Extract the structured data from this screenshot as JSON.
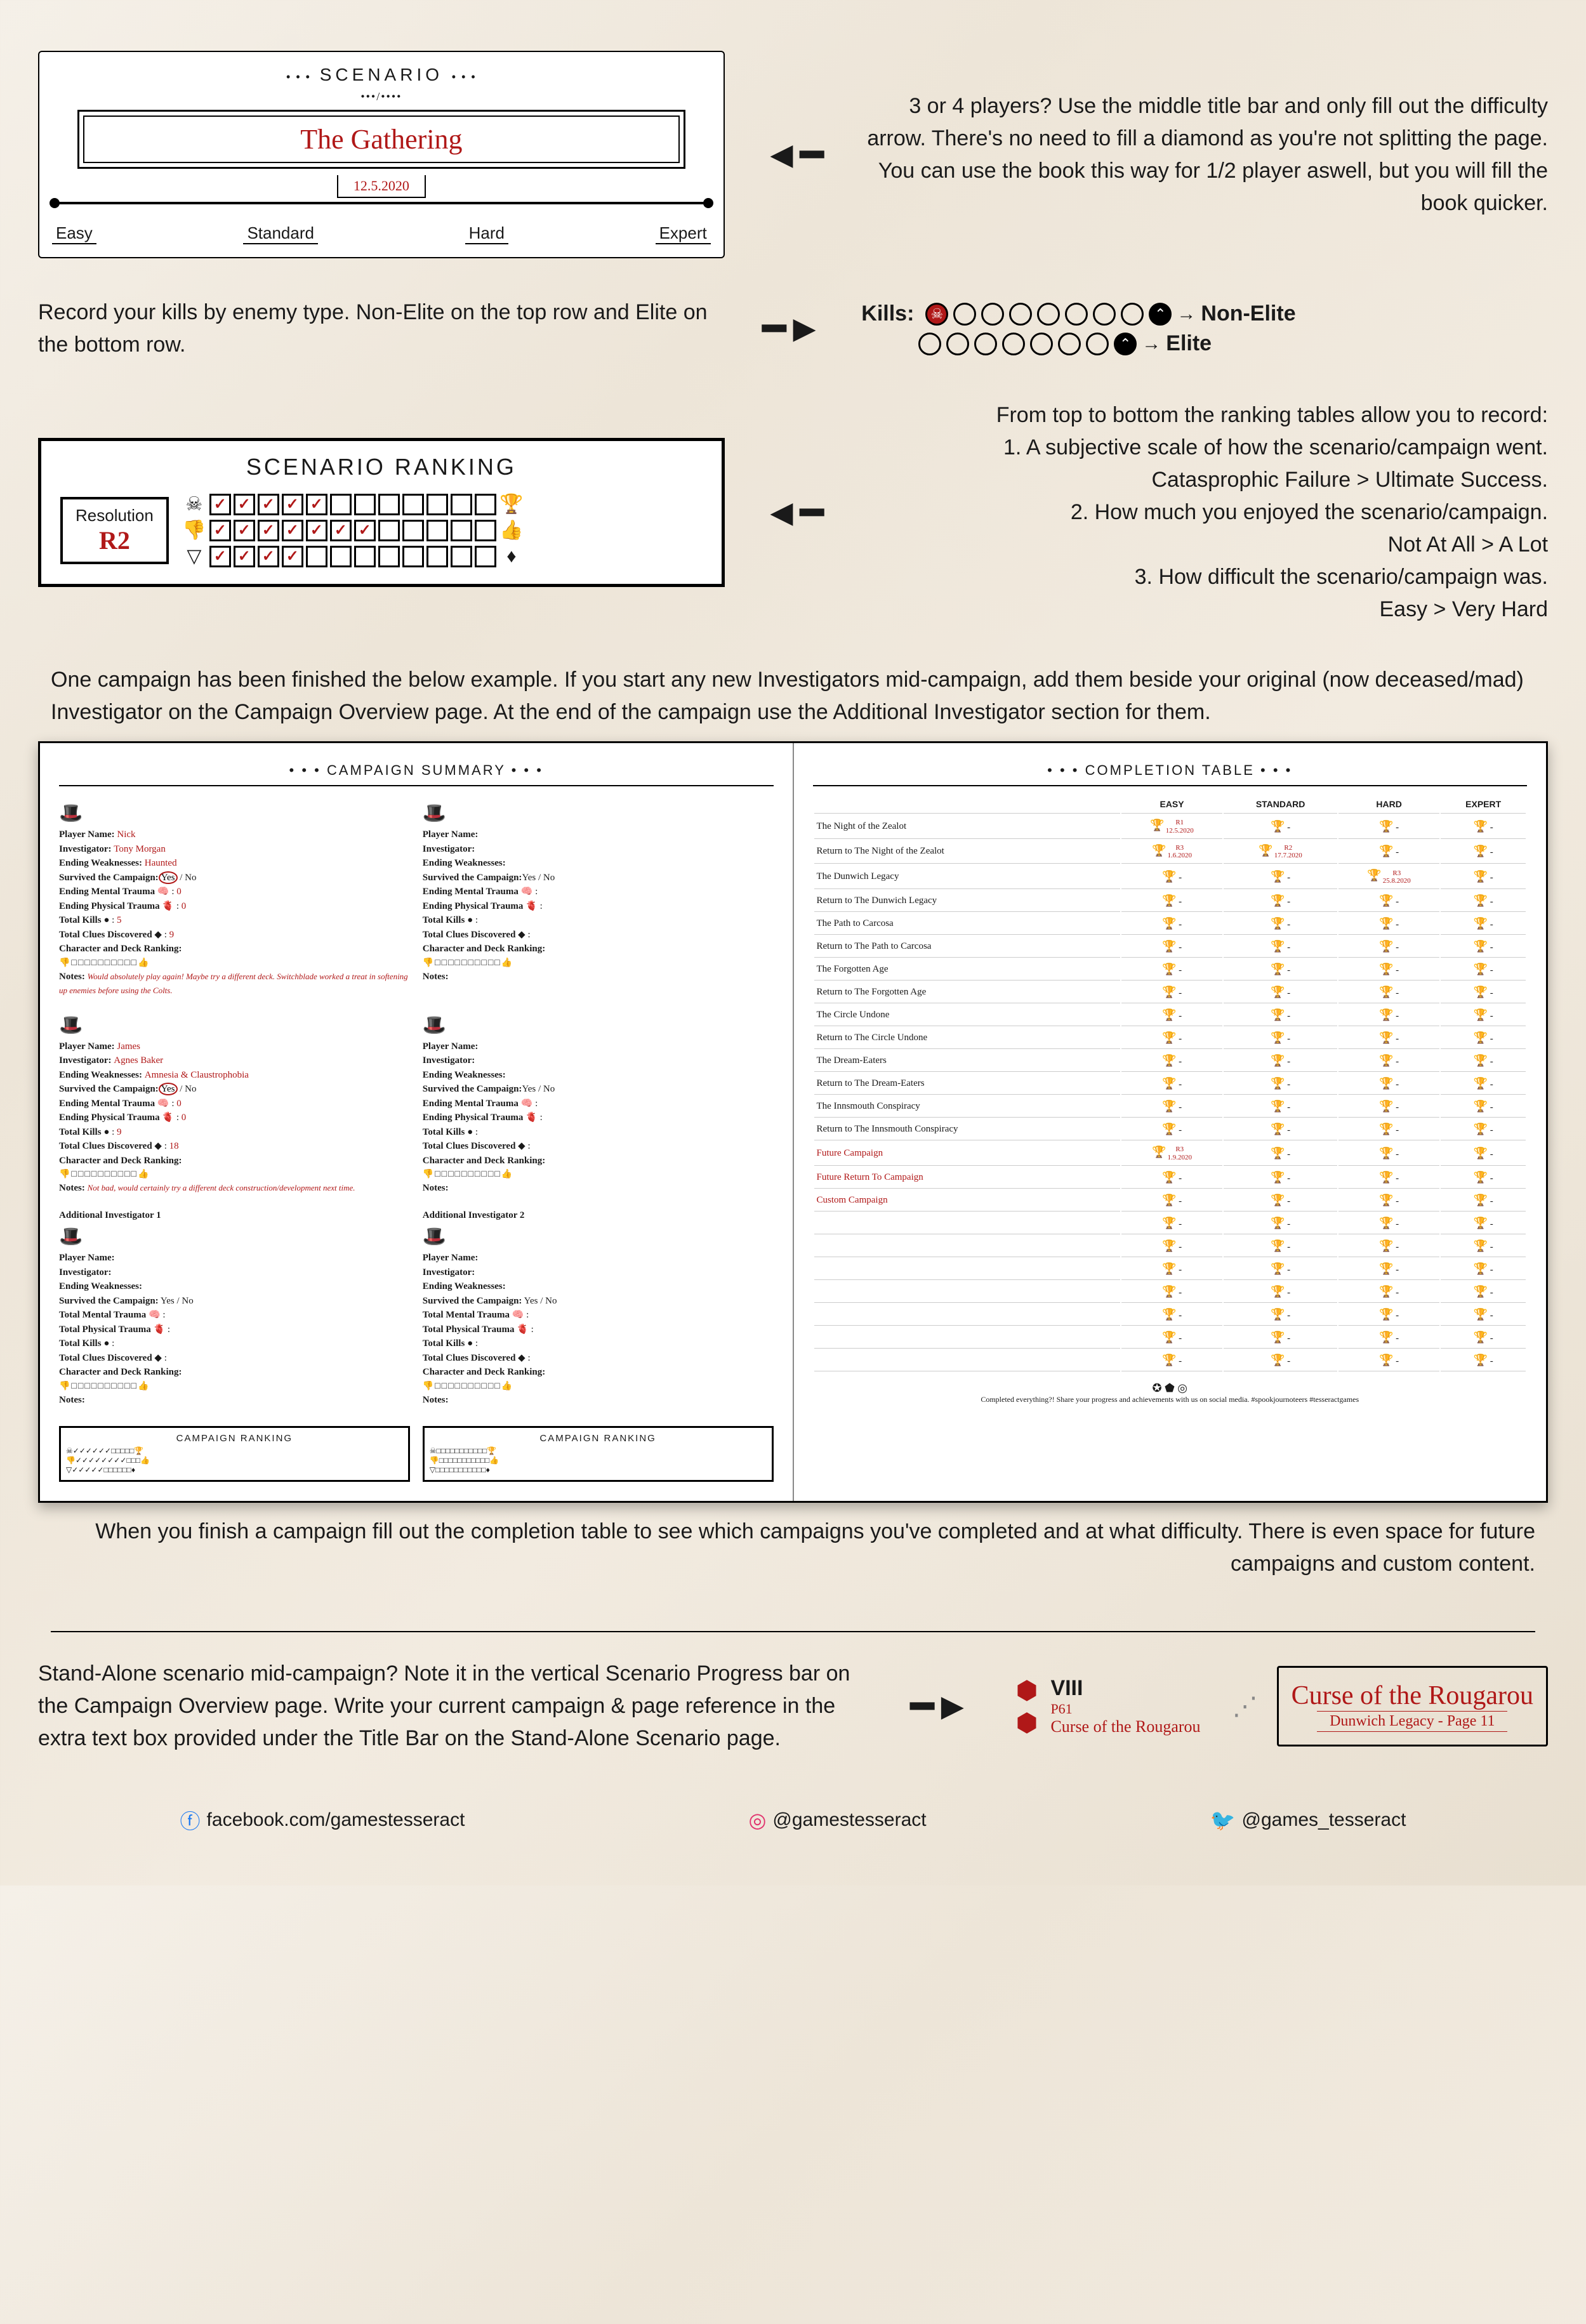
{
  "section1": {
    "header": "SCENARIO",
    "title": "The Gathering",
    "date": "12.5.2020",
    "difficulties": [
      "Easy",
      "Standard",
      "Hard",
      "Expert"
    ],
    "instruction": "3 or 4 players? Use the middle title bar and only fill out the difficulty arrow. There's no need to fill a diamond as you're not splitting the page. You can use the book this way for 1/2 player aswell, but you will fill the book quicker."
  },
  "section2": {
    "instruction": "Record your kills by enemy type. Non-Elite on the top row and Elite on the bottom row.",
    "kills_label": "Kills:",
    "row1_label": "Non-Elite",
    "row2_label": "Elite"
  },
  "section3": {
    "header": "SCENARIO RANKING",
    "resolution_label": "Resolution",
    "resolution_value": "R2",
    "instruction": "From top to bottom the ranking tables allow you to record:\n1. A subjective scale of how the scenario/campaign went.\nCatasprophic Failure > Ultimate Success.\n2. How much you enjoyed the scenario/campaign.\nNot At All > A Lot\n3. How difficult the scenario/campaign was.\nEasy > Very Hard",
    "row_ends": [
      [
        "☠",
        "🏆"
      ],
      [
        "👎",
        "👍"
      ],
      [
        "▽",
        "♦"
      ]
    ],
    "filled_counts": [
      5,
      7,
      4
    ]
  },
  "section4": {
    "intro": "One campaign has been finished the below example. If you start any new Investigators mid-campaign, add them beside your original (now deceased/mad) Investigator on the Campaign Overview page. At the end of the campaign use the Additional Investigator section for them.",
    "left_header": "CAMPAIGN SUMMARY",
    "right_header": "COMPLETION TABLE",
    "investigators": [
      {
        "player_name": "Nick",
        "investigator": "Tony Morgan",
        "weaknesses": "Haunted",
        "survived": "Yes",
        "mental_trauma": "0",
        "physical_trauma": "0",
        "total_kills": "5",
        "clues": "9",
        "notes": "Would absolutely play again! Maybe try a different deck. Switchblade worked a treat in softening up enemies before using the Colts."
      },
      {
        "player_name": "",
        "investigator": "",
        "weaknesses": "",
        "survived": "",
        "mental_trauma": "",
        "physical_trauma": "",
        "total_kills": "",
        "clues": "",
        "notes": ""
      },
      {
        "player_name": "James",
        "investigator": "Agnes Baker",
        "weaknesses": "Amnesia & Claustrophobia",
        "survived": "Yes",
        "mental_trauma": "0",
        "physical_trauma": "0",
        "total_kills": "9",
        "clues": "18",
        "notes": "Not bad, would certainly try a different deck construction/development next time."
      },
      {
        "player_name": "",
        "investigator": "",
        "weaknesses": "",
        "survived": "",
        "mental_trauma": "",
        "physical_trauma": "",
        "total_kills": "",
        "clues": "",
        "notes": ""
      }
    ],
    "additional_labels": [
      "Additional Investigator 1",
      "Additional Investigator 2"
    ],
    "campaign_ranking_label": "CAMPAIGN RANKING",
    "completion_cols": [
      "EASY",
      "STANDARD",
      "HARD",
      "EXPERT"
    ],
    "completion_rows": [
      {
        "name": "The Night of the Zealot",
        "easy": "R1 12.5.2020"
      },
      {
        "name": "Return to The Night of the Zealot",
        "easy": "R3 1.6.2020",
        "standard": "R2 17.7.2020"
      },
      {
        "name": "The Dunwich Legacy",
        "hard": "R3 25.8.2020"
      },
      {
        "name": "Return to The Dunwich Legacy"
      },
      {
        "name": "The Path to Carcosa"
      },
      {
        "name": "Return to The Path to Carcosa"
      },
      {
        "name": "The Forgotten Age"
      },
      {
        "name": "Return to The Forgotten Age"
      },
      {
        "name": "The Circle Undone"
      },
      {
        "name": "Return to The Circle Undone"
      },
      {
        "name": "The Dream-Eaters"
      },
      {
        "name": "Return to The Dream-Eaters"
      },
      {
        "name": "The Innsmouth Conspiracy"
      },
      {
        "name": "Return to The Innsmouth Conspiracy"
      },
      {
        "name": "Future Campaign",
        "red": true,
        "easy": "R3 1.9.2020"
      },
      {
        "name": "Future Return To Campaign",
        "red": true
      },
      {
        "name": "Custom Campaign",
        "red": true
      },
      {
        "name": ""
      },
      {
        "name": ""
      },
      {
        "name": ""
      },
      {
        "name": ""
      },
      {
        "name": ""
      },
      {
        "name": ""
      },
      {
        "name": ""
      }
    ],
    "completion_footer": "Completed everything?! Share your progress and achievements with us on social media.  #spookjournoteers   #tesseractgames",
    "outro": "When you finish a campaign fill out the completion table to see which campaigns you've completed and at what difficulty. There is even space for future campaigns and custom content."
  },
  "section5": {
    "instruction": "Stand-Alone scenario mid-campaign? Note it in the vertical Scenario Progress bar on the Campaign Overview page. Write your current campaign & page reference in the extra text box provided under the Title Bar on the Stand-Alone Scenario page.",
    "roman": "VIII",
    "page_ref": "P61",
    "name": "Curse of the Rougarou",
    "title": "Curse of the Rougarou",
    "subtitle": "Dunwich Legacy - Page 11"
  },
  "socials": {
    "fb": "facebook.com/gamestesseract",
    "ig": "@gamestesseract",
    "tw": "@games_tesseract"
  },
  "colors": {
    "red": "#b01818",
    "black": "#1a1a1a",
    "bg": "#f5f0e8"
  }
}
